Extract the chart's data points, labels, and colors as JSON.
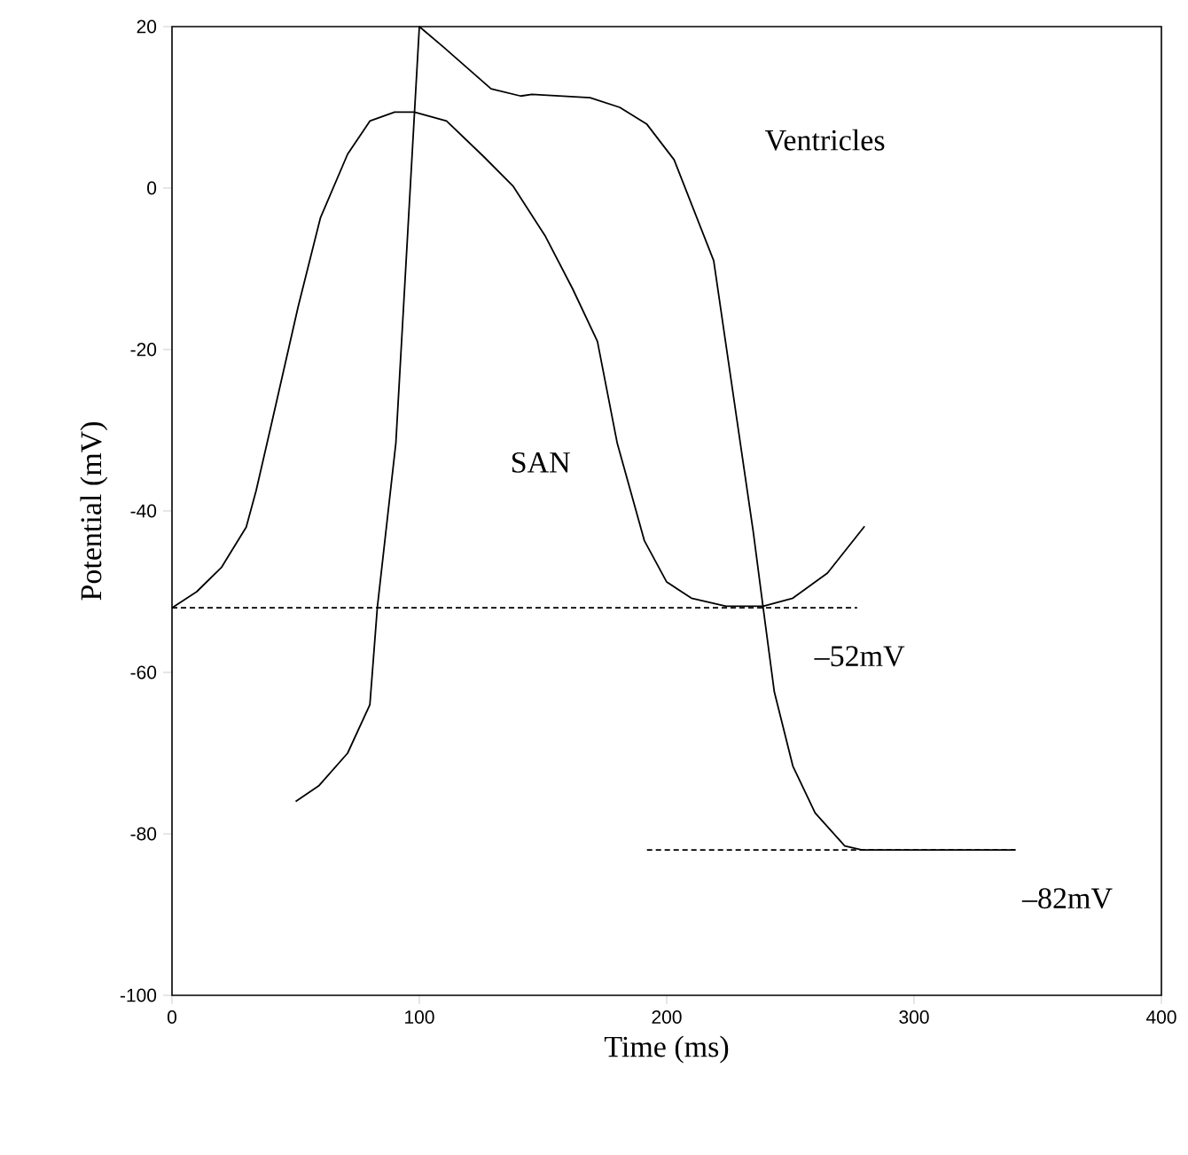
{
  "chart_data": {
    "type": "line",
    "xlabel": "Time (ms)",
    "ylabel": "Potential (mV)",
    "xlim": [
      0,
      400
    ],
    "xticks": [
      0,
      100,
      200,
      300,
      400
    ],
    "ylim": [
      -100,
      20
    ],
    "yticks": [
      -100,
      -80,
      -60,
      -40,
      -20,
      0,
      20
    ],
    "grid": false,
    "marker": "none",
    "series": [
      {
        "name": "SAN",
        "color": "#000000",
        "line_style": "solid",
        "x": [
          0,
          10,
          20,
          30,
          34,
          40,
          51,
          60,
          71,
          80,
          90,
          98,
          111,
          126,
          138,
          151,
          162,
          172,
          180,
          191,
          200,
          210,
          224,
          239,
          251,
          265,
          280
        ],
        "values": [
          -52,
          -50,
          -47,
          -42,
          -37.5,
          -29.5,
          -14.7,
          -3.7,
          4.2,
          8.3,
          9.4,
          9.4,
          8.3,
          3.9,
          0.2,
          -6,
          -12.5,
          -19,
          -31.6,
          -43.7,
          -48.8,
          -50.8,
          -51.8,
          -51.8,
          -50.8,
          -47.7,
          -41.9
        ]
      },
      {
        "name": "Ventricles",
        "color": "#000000",
        "line_style": "solid",
        "x": [
          50,
          59.5,
          71,
          80,
          83,
          90.5,
          100,
          110,
          129,
          141,
          145.5,
          169,
          181,
          192,
          203,
          219,
          235,
          239,
          243.5,
          251,
          260,
          272,
          279,
          341
        ],
        "values": [
          -76,
          -74,
          -70,
          -64,
          -52,
          -31.6,
          20,
          17.4,
          12.3,
          11.4,
          11.6,
          11.2,
          10,
          7.9,
          3.5,
          -9,
          -42.6,
          -52,
          -62.4,
          -71.6,
          -77.4,
          -81.5,
          -82,
          -82
        ]
      },
      {
        "name": "–52mV",
        "color": "#000000",
        "line_style": "dashed",
        "x": [
          0,
          277
        ],
        "values": [
          -52,
          -52
        ]
      },
      {
        "name": "–82mV",
        "color": "#000000",
        "line_style": "dashed",
        "x": [
          192,
          341
        ],
        "values": [
          -82,
          -82
        ]
      }
    ]
  }
}
